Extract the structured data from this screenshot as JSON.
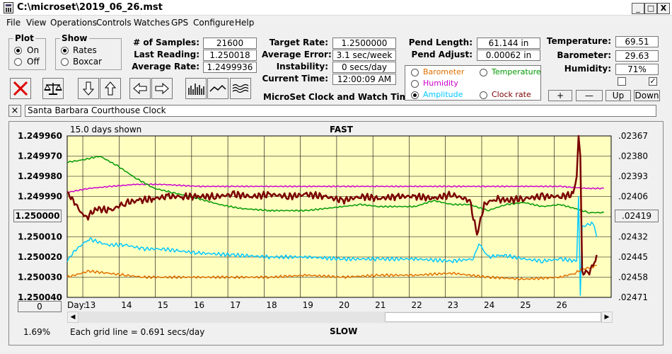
{
  "window": {
    "title": "C:\\microset\\2019_06_26.mst",
    "min_glyph": "_",
    "max_glyph": "□",
    "close_glyph": "X"
  },
  "menu": [
    "File",
    "View",
    "Operations",
    "Controls",
    "Watches",
    "GPS",
    "Configure",
    "Help"
  ],
  "plot_group": {
    "title": "Plot",
    "on": "On",
    "off": "Off",
    "selected": "On"
  },
  "show_group": {
    "title": "Show",
    "rates": "Rates",
    "boxcar": "Boxcar",
    "selected": "Rates"
  },
  "stats": {
    "samples_label": "# of Samples:",
    "samples": "21600",
    "last_reading_label": "Last Reading:",
    "last_reading": "1.250018",
    "average_rate_label": "Average Rate:",
    "average_rate": "1.2499936",
    "target_rate_label": "Target Rate:",
    "target_rate": "1.2500000",
    "average_error_label": "Average Error:",
    "average_error": "3.1 sec/week",
    "instability_label": "Instability:",
    "instability": "0 secs/day",
    "current_time_label": "Current Time:",
    "current_time": "12:00:09 AM",
    "pend_length_label": "Pend Length:",
    "pend_length": "61.144 in",
    "pend_adjust_label": "Pend Adjust:",
    "pend_adjust": "0.00062 in",
    "temperature_label": "Temperature:",
    "temperature": "69.51",
    "barometer_label": "Barometer:",
    "barometer": "29.63",
    "humidity_label": "Humidity:",
    "humidity": "71%"
  },
  "app_caption": "MicroSet Clock and Watch Timer",
  "series_selector": [
    {
      "label": "Barometer",
      "color": "#e07000",
      "selected": false
    },
    {
      "label": "Temperature",
      "color": "#009900",
      "selected": false
    },
    {
      "label": "Humidity",
      "color": "#cc00cc",
      "selected": false
    },
    {
      "label": "Amplitude",
      "color": "#00c8ff",
      "selected": true
    },
    {
      "label": "Clock rate",
      "color": "#7a0000",
      "selected": false
    }
  ],
  "right_buttons": {
    "plus": "+",
    "minus": "—",
    "up": "Up",
    "down": "Down"
  },
  "right_checks": {
    "left": false,
    "right": true,
    "check_glyph": "✓"
  },
  "clock_name": "Santa Barbara Courthouse Clock",
  "clock_close_glyph": "×",
  "graph": {
    "days_shown": "15.0 days shown",
    "top_label": "FAST",
    "bottom_label": "SLOW",
    "grid_note": "Each grid line = 0.691 secs/day",
    "percent": "1.69%",
    "day_prefix": "Day:",
    "left_ticks": [
      "1.249960",
      "1.249970",
      "1.249980",
      "1.249990",
      "1.250000",
      "1.250010",
      "1.250020",
      "1.250030",
      "1.250040"
    ],
    "right_ticks": [
      ".02367",
      ".02380",
      ".02393",
      ".02406",
      ".02419",
      ".02432",
      ".02445",
      ".02458",
      ".02471"
    ],
    "left_button": "1.250000",
    "right_button": ".02419",
    "zero_button": "0"
  },
  "chart_data": {
    "type": "line",
    "x_ticks": [
      13,
      14,
      15,
      16,
      17,
      18,
      19,
      20,
      21,
      22,
      23,
      24,
      25,
      26
    ],
    "xlim": [
      12.4,
      27.4
    ],
    "ylim": [
      1.24996,
      1.25004
    ],
    "y_inverted": true,
    "grid": true,
    "series": [
      {
        "color": "#cc00cc",
        "points": [
          [
            12.4,
            1.249988
          ],
          [
            13,
            1.249986
          ],
          [
            13.6,
            1.249985
          ],
          [
            14.3,
            1.249984
          ],
          [
            15,
            1.249984
          ],
          [
            16,
            1.249985
          ],
          [
            17,
            1.249985
          ],
          [
            18,
            1.249985
          ],
          [
            19,
            1.249985
          ],
          [
            20,
            1.249985
          ],
          [
            21,
            1.249985
          ],
          [
            22,
            1.249985
          ],
          [
            23,
            1.249985
          ],
          [
            24,
            1.249985
          ],
          [
            25,
            1.249985
          ],
          [
            26,
            1.249985
          ],
          [
            26.7,
            1.249986
          ],
          [
            27.2,
            1.249986
          ]
        ]
      },
      {
        "color": "#009900",
        "points": [
          [
            12.4,
            1.249973
          ],
          [
            12.8,
            1.249972
          ],
          [
            13.3,
            1.24997
          ],
          [
            13.8,
            1.249975
          ],
          [
            14.3,
            1.249981
          ],
          [
            14.8,
            1.249986
          ],
          [
            15.3,
            1.249988
          ],
          [
            16,
            1.249991
          ],
          [
            16.6,
            1.249994
          ],
          [
            17.2,
            1.249996
          ],
          [
            18,
            1.249997
          ],
          [
            19,
            1.249997
          ],
          [
            20,
            1.249995
          ],
          [
            20.5,
            1.249994
          ],
          [
            21,
            1.249995
          ],
          [
            22,
            1.249995
          ],
          [
            22.5,
            1.249992
          ],
          [
            23,
            1.249994
          ],
          [
            23.5,
            1.249994
          ],
          [
            24,
            1.249997
          ],
          [
            24.5,
            1.249994
          ],
          [
            25,
            1.249993
          ],
          [
            25.5,
            1.249995
          ],
          [
            26,
            1.249994
          ],
          [
            26.4,
            1.249996
          ],
          [
            26.8,
            1.249998
          ],
          [
            27.2,
            1.249998
          ]
        ]
      },
      {
        "color": "#00c8ff",
        "points": [
          [
            12.4,
            1.250022
          ],
          [
            12.6,
            1.250017
          ],
          [
            13,
            1.250011
          ],
          [
            13.5,
            1.250014
          ],
          [
            14,
            1.250014
          ],
          [
            14.5,
            1.250016
          ],
          [
            15,
            1.250016
          ],
          [
            15.5,
            1.250017
          ],
          [
            16,
            1.250018
          ],
          [
            17,
            1.250019
          ],
          [
            18,
            1.25002
          ],
          [
            19,
            1.25002
          ],
          [
            20,
            1.250021
          ],
          [
            21,
            1.250021
          ],
          [
            22,
            1.250021
          ],
          [
            23,
            1.250022
          ],
          [
            23.6,
            1.250021
          ],
          [
            23.75,
            1.250013
          ],
          [
            24,
            1.25002
          ],
          [
            24.4,
            1.250019
          ],
          [
            25,
            1.250021
          ],
          [
            25.5,
            1.250022
          ],
          [
            26,
            1.250021
          ],
          [
            26.45,
            1.250022
          ],
          [
            26.5,
            1.24999
          ],
          [
            26.55,
            1.250039
          ],
          [
            26.6,
            1.250005
          ],
          [
            26.9,
            1.250003
          ],
          [
            27.0,
            1.25001
          ]
        ]
      },
      {
        "color": "#e07000",
        "points": [
          [
            12.4,
            1.25003
          ],
          [
            13,
            1.250027
          ],
          [
            13.5,
            1.250028
          ],
          [
            14,
            1.250029
          ],
          [
            14.5,
            1.25003
          ],
          [
            15,
            1.25003
          ],
          [
            16,
            1.25003
          ],
          [
            17,
            1.25003
          ],
          [
            18,
            1.25003
          ],
          [
            19,
            1.250029
          ],
          [
            20,
            1.25003
          ],
          [
            21,
            1.250029
          ],
          [
            22,
            1.250029
          ],
          [
            23,
            1.250028
          ],
          [
            24,
            1.25003
          ],
          [
            25,
            1.250031
          ],
          [
            26,
            1.25003
          ],
          [
            26.4,
            1.250028
          ],
          [
            26.6,
            1.250026
          ],
          [
            26.9,
            1.250025
          ],
          [
            27.0,
            1.250024
          ]
        ]
      },
      {
        "color": "#7a0000",
        "points": [
          [
            12.4,
            1.249988
          ],
          [
            12.6,
            1.249993
          ],
          [
            12.9,
            1.250001
          ],
          [
            13.2,
            1.249996
          ],
          [
            13.6,
            1.249997
          ],
          [
            14,
            1.249993
          ],
          [
            14.4,
            1.249992
          ],
          [
            14.8,
            1.249991
          ],
          [
            15.2,
            1.24999
          ],
          [
            15.6,
            1.24999
          ],
          [
            16,
            1.24999
          ],
          [
            16.5,
            1.24999
          ],
          [
            17,
            1.249989
          ],
          [
            17.5,
            1.24999
          ],
          [
            18,
            1.249989
          ],
          [
            18.5,
            1.24999
          ],
          [
            19,
            1.249989
          ],
          [
            19.5,
            1.24999
          ],
          [
            20,
            1.249992
          ],
          [
            20.5,
            1.24999
          ],
          [
            21,
            1.249991
          ],
          [
            21.5,
            1.24999
          ],
          [
            22,
            1.24999
          ],
          [
            22.5,
            1.249991
          ],
          [
            23,
            1.249989
          ],
          [
            23.5,
            1.249992
          ],
          [
            23.7,
            1.250009
          ],
          [
            23.9,
            1.249994
          ],
          [
            24.2,
            1.249991
          ],
          [
            24.5,
            1.249992
          ],
          [
            25,
            1.249991
          ],
          [
            25.5,
            1.24999
          ],
          [
            26,
            1.24999
          ],
          [
            26.35,
            1.249989
          ],
          [
            26.45,
            1.24998
          ],
          [
            26.5,
            1.24996
          ],
          [
            26.55,
            1.24997
          ],
          [
            26.6,
            1.250028
          ],
          [
            26.8,
            1.250027
          ],
          [
            26.9,
            1.250025
          ],
          [
            27.0,
            1.250019
          ]
        ]
      }
    ]
  }
}
